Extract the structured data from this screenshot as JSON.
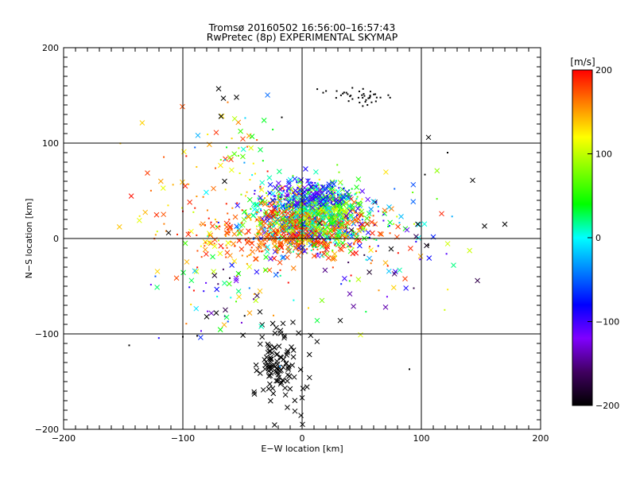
{
  "chart_data": {
    "type": "scatter",
    "title": "Tromsø 20160502 16:56:00–16:57:43",
    "subtitle": "RwPretec (8p) EXPERIMENTAL SKYMAP",
    "xlabel": "E−W location [km]",
    "ylabel": "N−S location [km]",
    "xlim": [
      -200,
      200
    ],
    "ylim": [
      -200,
      200
    ],
    "xticks": [
      "−200",
      "−100",
      "0",
      "100",
      "200"
    ],
    "yticks": [
      "−200",
      "−100",
      "0",
      "100",
      "200"
    ],
    "xtick_values": [
      -200,
      -100,
      0,
      100,
      200
    ],
    "ytick_values": [
      -200,
      -100,
      0,
      100,
      200
    ],
    "grid": true,
    "colorbar": {
      "label": "[m/s]",
      "min": -200,
      "max": 200,
      "ticks": [
        "200",
        "100",
        "0",
        "−100",
        "−200"
      ],
      "tick_values": [
        200,
        100,
        0,
        -100,
        -200
      ],
      "colors": [
        "#ff0000",
        "#ff8000",
        "#ffff00",
        "#80ff00",
        "#00ff00",
        "#00ffff",
        "#0080ff",
        "#0000ff",
        "#8000ff",
        "#400060",
        "#000000"
      ]
    },
    "clusters": [
      {
        "x": 5,
        "y": 20,
        "sx": 25,
        "sy": 18,
        "n": 900,
        "vmin": -120,
        "vmax": 200,
        "marker": "mixed"
      },
      {
        "x": -10,
        "y": 5,
        "sx": 35,
        "sy": 15,
        "n": 350,
        "vmin": 150,
        "vmax": 200,
        "marker": "mixed"
      },
      {
        "x": 15,
        "y": 30,
        "sx": 15,
        "sy": 15,
        "n": 250,
        "vmin": -20,
        "vmax": 110,
        "marker": "mixed"
      },
      {
        "x": 5,
        "y": 45,
        "sx": 18,
        "sy": 8,
        "n": 120,
        "vmin": -130,
        "vmax": -60,
        "marker": "mixed"
      },
      {
        "x": -20,
        "y": -135,
        "sx": 12,
        "sy": 22,
        "n": 110,
        "vmin": -200,
        "vmax": -200,
        "marker": "cross"
      },
      {
        "x": 45,
        "y": 150,
        "sx": 12,
        "sy": 4,
        "n": 40,
        "vmin": -200,
        "vmax": -200,
        "marker": "dot"
      },
      {
        "x": -90,
        "y": 20,
        "sx": 30,
        "sy": 40,
        "n": 70,
        "vmin": 100,
        "vmax": 200,
        "marker": "mixed"
      },
      {
        "x": 70,
        "y": -10,
        "sx": 30,
        "sy": 35,
        "n": 90,
        "vmin": -200,
        "vmax": 200,
        "marker": "mixed"
      },
      {
        "x": -60,
        "y": -60,
        "sx": 30,
        "sy": 25,
        "n": 60,
        "vmin": -200,
        "vmax": 200,
        "marker": "mixed"
      },
      {
        "x": -60,
        "y": 100,
        "sx": 25,
        "sy": 30,
        "n": 40,
        "vmin": -50,
        "vmax": 200,
        "marker": "mixed"
      }
    ],
    "points": [
      {
        "x": -70,
        "y": 157,
        "v": -200,
        "m": "cross"
      },
      {
        "x": -66,
        "y": 147,
        "v": -200,
        "m": "cross"
      },
      {
        "x": -55,
        "y": 148,
        "v": -200,
        "m": "cross"
      },
      {
        "x": -68,
        "y": 128,
        "v": -200,
        "m": "cross"
      },
      {
        "x": -17,
        "y": 127,
        "v": -200,
        "m": "dot"
      },
      {
        "x": 106,
        "y": 106,
        "v": -200,
        "m": "cross"
      },
      {
        "x": 122,
        "y": 90,
        "v": -200,
        "m": "dot"
      },
      {
        "x": 143,
        "y": 61,
        "v": -200,
        "m": "cross"
      },
      {
        "x": 153,
        "y": 13,
        "v": -200,
        "m": "cross"
      },
      {
        "x": 170,
        "y": 15,
        "v": -200,
        "m": "cross"
      },
      {
        "x": 127,
        "y": -28,
        "v": 20,
        "m": "cross"
      },
      {
        "x": 103,
        "y": 67,
        "v": -200,
        "m": "dot"
      },
      {
        "x": -145,
        "y": -112,
        "v": -200,
        "m": "dot"
      },
      {
        "x": -100,
        "y": -103,
        "v": -200,
        "m": "dot"
      },
      {
        "x": -88,
        "y": -102,
        "v": -200,
        "m": "dot"
      },
      {
        "x": -98,
        "y": 55,
        "v": 190,
        "m": "cross"
      },
      {
        "x": -112,
        "y": 6,
        "v": -200,
        "m": "cross"
      },
      {
        "x": -98,
        "y": -5,
        "v": 60,
        "m": "cross"
      },
      {
        "x": -90,
        "y": -34,
        "v": -20,
        "m": "cross"
      },
      {
        "x": -80,
        "y": -82,
        "v": -200,
        "m": "cross"
      },
      {
        "x": -72,
        "y": -78,
        "v": -200,
        "m": "cross"
      },
      {
        "x": -44,
        "y": -78,
        "v": 150,
        "m": "cross"
      },
      {
        "x": 49,
        "y": -101,
        "v": 110,
        "m": "cross"
      },
      {
        "x": 32,
        "y": -86,
        "v": -200,
        "m": "cross"
      },
      {
        "x": 90,
        "y": -137,
        "v": -200,
        "m": "dot"
      },
      {
        "x": 73,
        "y": 33,
        "v": -20,
        "m": "cross"
      },
      {
        "x": 88,
        "y": 9,
        "v": -110,
        "m": "cross"
      },
      {
        "x": 97,
        "y": 15,
        "v": -200,
        "m": "cross"
      },
      {
        "x": 106,
        "y": -7,
        "v": -200,
        "m": "dot"
      },
      {
        "x": 117,
        "y": 26,
        "v": 190,
        "m": "cross"
      },
      {
        "x": 70,
        "y": -72,
        "v": -140,
        "m": "cross"
      },
      {
        "x": 40,
        "y": -58,
        "v": -140,
        "m": "cross"
      },
      {
        "x": -42,
        "y": 107,
        "v": 40,
        "m": "cross"
      },
      {
        "x": -35,
        "y": 93,
        "v": 30,
        "m": "cross"
      },
      {
        "x": -65,
        "y": 60,
        "v": -200,
        "m": "cross"
      },
      {
        "x": -6,
        "y": -181,
        "v": -200,
        "m": "cross"
      },
      {
        "x": -40,
        "y": -163,
        "v": -200,
        "m": "cross"
      },
      {
        "x": 0,
        "y": -167,
        "v": -200,
        "m": "cross"
      }
    ]
  }
}
